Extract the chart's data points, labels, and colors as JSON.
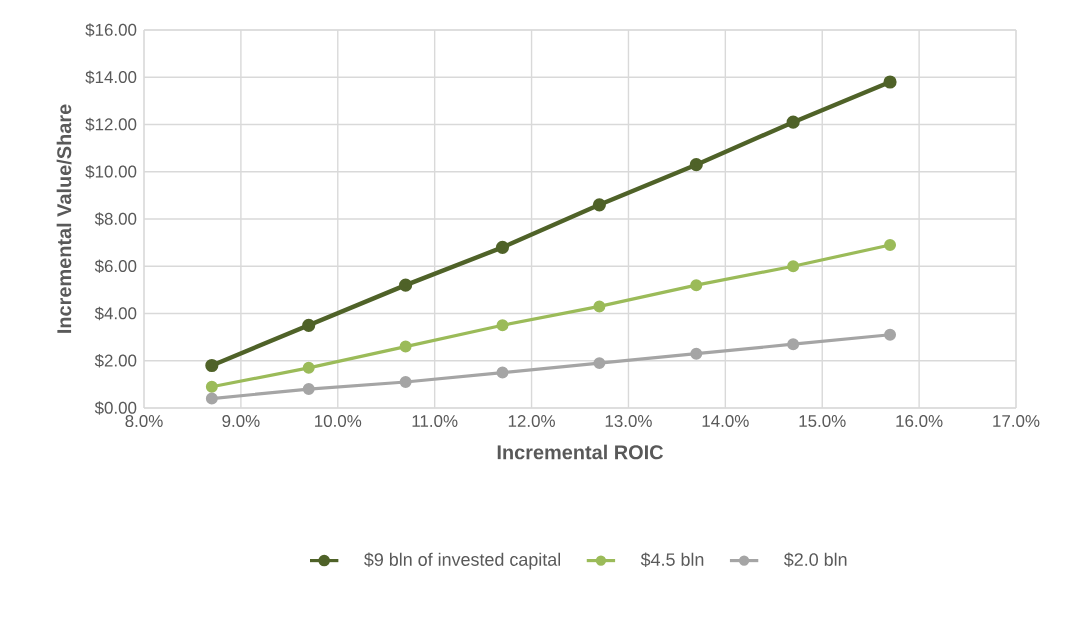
{
  "chart_data": {
    "type": "line",
    "xlabel": "Incremental ROIC",
    "ylabel": "Incremental Value/Share",
    "x": [
      8.7,
      9.7,
      10.7,
      11.7,
      12.7,
      13.7,
      14.7,
      15.7
    ],
    "series": [
      {
        "name": "$9 bln of invested capital",
        "color": "#4f6228",
        "values": [
          1.8,
          3.5,
          5.2,
          6.8,
          8.6,
          10.3,
          12.1,
          13.8
        ]
      },
      {
        "name": "$4.5 bln",
        "color": "#9bbb59",
        "values": [
          0.9,
          1.7,
          2.6,
          3.5,
          4.3,
          5.2,
          6.0,
          6.9
        ]
      },
      {
        "name": "$2.0 bln",
        "color": "#a5a5a5",
        "values": [
          0.4,
          0.8,
          1.1,
          1.5,
          1.9,
          2.3,
          2.7,
          3.1
        ]
      }
    ],
    "xlim": [
      8,
      17
    ],
    "xticks": [
      {
        "value": 8,
        "label": "8.0%"
      },
      {
        "value": 9,
        "label": "9.0%"
      },
      {
        "value": 10,
        "label": "10.0%"
      },
      {
        "value": 11,
        "label": "11.0%"
      },
      {
        "value": 12,
        "label": "12.0%"
      },
      {
        "value": 13,
        "label": "13.0%"
      },
      {
        "value": 14,
        "label": "14.0%"
      },
      {
        "value": 15,
        "label": "15.0%"
      },
      {
        "value": 16,
        "label": "16.0%"
      },
      {
        "value": 17,
        "label": "17.0%"
      }
    ],
    "ylim": [
      0,
      16
    ],
    "yticks": [
      {
        "value": 0,
        "label": "$0.00"
      },
      {
        "value": 2,
        "label": "$2.00"
      },
      {
        "value": 4,
        "label": "$4.00"
      },
      {
        "value": 6,
        "label": "$6.00"
      },
      {
        "value": 8,
        "label": "$8.00"
      },
      {
        "value": 10,
        "label": "$10.00"
      },
      {
        "value": 12,
        "label": "$12.00"
      },
      {
        "value": 14,
        "label": "$14.00"
      },
      {
        "value": 16,
        "label": "$16.00"
      }
    ],
    "grid": true,
    "legend": "bottom",
    "marker": "circle",
    "line_style": "solid"
  }
}
